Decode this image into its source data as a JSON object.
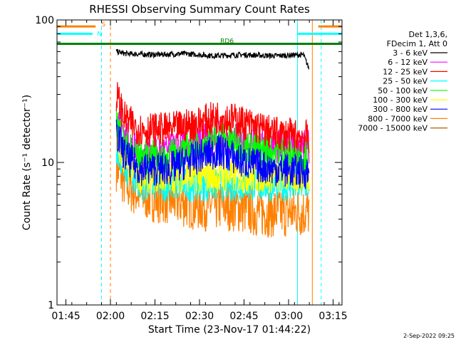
{
  "chart_data": {
    "type": "line",
    "title": "RHESSI Observing Summary Count Rates",
    "xlabel": "Start Time (23-Nov-17 01:44:22)",
    "ylabel": "Count Rate (s⁻¹ detector⁻¹)",
    "y_scale": "log",
    "ylim": [
      1,
      100
    ],
    "xlim_minutes": [
      -3,
      93
    ],
    "y_ticks": [
      {
        "value": 1,
        "label": "1"
      },
      {
        "value": 10,
        "label": "10"
      },
      {
        "value": 100,
        "label": "100"
      }
    ],
    "x_ticks": [
      {
        "minute": 0,
        "label": "01:45"
      },
      {
        "minute": 15,
        "label": "02:00"
      },
      {
        "minute": 30,
        "label": "02:15"
      },
      {
        "minute": 45,
        "label": "02:30"
      },
      {
        "minute": 60,
        "label": "02:45"
      },
      {
        "minute": 75,
        "label": "03:00"
      },
      {
        "minute": 90,
        "label": "03:15"
      }
    ],
    "legend": {
      "placement": "right",
      "header": [
        "Det 1,3,6,",
        "FDecim 1, Att 0"
      ]
    },
    "series": [
      {
        "name": "3 - 6 keV",
        "color": "#000000",
        "x": [
          17,
          20,
          30,
          40,
          50,
          60,
          70,
          80,
          82
        ],
        "y": [
          60,
          58,
          57,
          58,
          56,
          57,
          56,
          57,
          45
        ]
      },
      {
        "name": "6 - 12 keV",
        "color": "#ff00ff",
        "x": [
          17,
          20,
          25,
          35,
          45,
          52,
          60,
          70,
          82
        ],
        "y": [
          22,
          15,
          11,
          12,
          14,
          15,
          14,
          13,
          13
        ]
      },
      {
        "name": "12 - 25 keV",
        "color": "#ff0000",
        "x": [
          17,
          20,
          25,
          35,
          45,
          52,
          60,
          70,
          82
        ],
        "y": [
          30,
          20,
          17,
          17,
          19,
          21,
          19,
          16,
          15
        ]
      },
      {
        "name": "25 - 50 keV",
        "color": "#00ffff",
        "x": [
          17,
          20,
          25,
          35,
          45,
          55,
          65,
          75,
          82
        ],
        "y": [
          13,
          9,
          7,
          7,
          7,
          7,
          7,
          7,
          7
        ]
      },
      {
        "name": "50 - 100 keV",
        "color": "#00ff00",
        "x": [
          17,
          20,
          25,
          35,
          45,
          52,
          60,
          70,
          82
        ],
        "y": [
          20,
          13,
          11,
          11,
          13,
          15,
          13,
          12,
          11
        ]
      },
      {
        "name": "100 - 300 keV",
        "color": "#ffff00",
        "x": [
          17,
          20,
          25,
          35,
          45,
          55,
          65,
          75,
          82
        ],
        "y": [
          14,
          10,
          8,
          8,
          8,
          8,
          8,
          8,
          8
        ]
      },
      {
        "name": "300 - 800 keV",
        "color": "#0000ff",
        "x": [
          17,
          20,
          25,
          35,
          45,
          52,
          60,
          70,
          82
        ],
        "y": [
          16,
          11,
          9,
          9,
          11,
          12,
          10,
          9,
          8.5
        ]
      },
      {
        "name": "800 - 7000 keV",
        "color": "#ff8000",
        "x": [
          17,
          20,
          25,
          35,
          45,
          55,
          65,
          75,
          82
        ],
        "y": [
          9.5,
          7,
          6,
          5.5,
          5,
          5,
          4.5,
          4.5,
          4.5
        ]
      },
      {
        "name": "7000 - 15000 keV",
        "color": "#b06000",
        "x": [],
        "y": []
      }
    ],
    "flags": [
      {
        "label": "S",
        "color": "#ff8000",
        "value": 90,
        "segments": [
          [
            -3,
            10
          ],
          [
            85,
            93
          ]
        ]
      },
      {
        "label": "N",
        "color": "#00ffff",
        "value": 80,
        "segments": [
          [
            -3,
            9
          ],
          [
            78,
            93
          ]
        ]
      },
      {
        "label": "RD6",
        "color": "#008000",
        "value": 68,
        "segments": [
          [
            -3,
            93
          ]
        ]
      }
    ],
    "events": [
      {
        "minute": -3,
        "color": "#00ffff",
        "style": "solid"
      },
      {
        "minute": 12,
        "color": "#00ffff",
        "style": "dashed"
      },
      {
        "minute": 15,
        "color": "#ff8000",
        "style": "dashed"
      },
      {
        "minute": 78,
        "color": "#00ffff",
        "style": "solid"
      },
      {
        "minute": 83,
        "color": "#ff8000",
        "style": "solid"
      },
      {
        "minute": 86,
        "color": "#00ffff",
        "style": "dashed"
      }
    ]
  },
  "footer": {
    "date": "2-Sep-2022 09:25"
  }
}
